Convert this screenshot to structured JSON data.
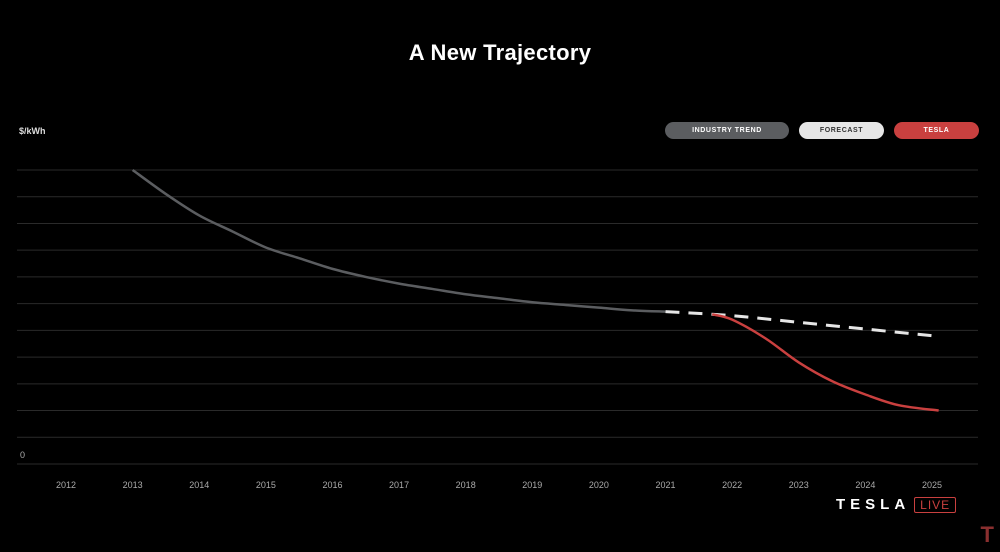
{
  "title": "A New Trajectory",
  "brand": {
    "word": "TESLA",
    "live": "LIVE"
  },
  "chart_data": {
    "type": "line",
    "title": "A New Trajectory",
    "ylabel": "$/kWh",
    "y_tick_labels": [
      "0"
    ],
    "x": [
      2012,
      2013,
      2014,
      2015,
      2016,
      2017,
      2018,
      2019,
      2020,
      2021,
      2022,
      2023,
      2024,
      2025
    ],
    "xlim": [
      2012,
      2025
    ],
    "ylim": [
      0,
      110
    ],
    "grid": true,
    "legend_position": "top-right",
    "legend": [
      "INDUSTRY TREND",
      "FORECAST",
      "TESLA"
    ],
    "series": [
      {
        "name": "INDUSTRY TREND",
        "color": "#5b5d60",
        "style": "solid",
        "x": [
          2013,
          2013.5,
          2014,
          2014.5,
          2015,
          2015.5,
          2016,
          2016.5,
          2017,
          2017.5,
          2018,
          2018.5,
          2019,
          2019.5,
          2020,
          2020.5,
          2021
        ],
        "y": [
          110,
          101,
          93,
          87,
          81,
          77,
          73,
          70,
          67.5,
          65.5,
          63.5,
          62,
          60.5,
          59.5,
          58.5,
          57.5,
          57
        ]
      },
      {
        "name": "FORECAST",
        "color": "#e6e6e6",
        "style": "dashed",
        "x": [
          2021,
          2022,
          2023,
          2024,
          2025
        ],
        "y": [
          57,
          55.5,
          53,
          50.5,
          48
        ]
      },
      {
        "name": "TESLA",
        "color": "#c9403f",
        "style": "solid",
        "x": [
          2021.7,
          2022,
          2022.5,
          2023,
          2023.5,
          2024,
          2024.5,
          2025.1
        ],
        "y": [
          56,
          54,
          47,
          38,
          31,
          26,
          22,
          20
        ]
      }
    ]
  },
  "colors": {
    "background": "#000000",
    "grid": "#2a2a2a",
    "accent": "#c9403f"
  }
}
